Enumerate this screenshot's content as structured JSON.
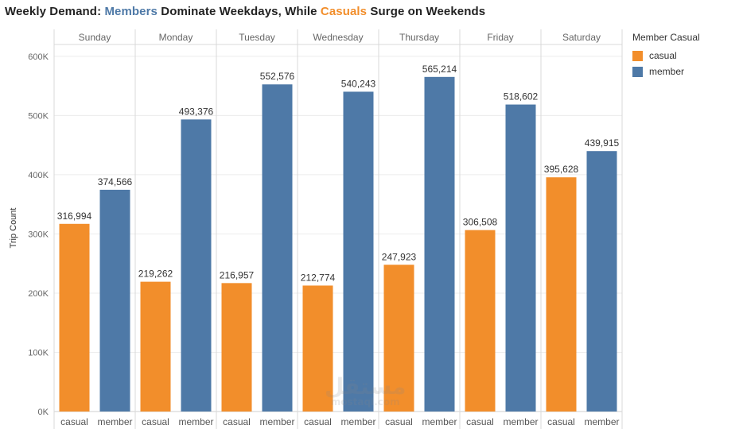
{
  "title": {
    "part1": "Weekly Demand: ",
    "members_word": "Members",
    "part2": " Dominate Weekdays, While ",
    "casuals_word": "Casuals",
    "part3": " Surge on Weekends"
  },
  "legend": {
    "title": "Member Casual",
    "items": [
      {
        "label": "casual",
        "color": "#f28e2b"
      },
      {
        "label": "member",
        "color": "#4e79a7"
      }
    ]
  },
  "watermark": {
    "logo": "مستقل",
    "text": "mostaql.com"
  },
  "chart_data": {
    "type": "bar",
    "categories": [
      "Sunday",
      "Monday",
      "Tuesday",
      "Wednesday",
      "Thursday",
      "Friday",
      "Saturday"
    ],
    "sub_categories": [
      "casual",
      "member"
    ],
    "series": [
      {
        "name": "casual",
        "color": "#f28e2b",
        "values": [
          316994,
          219262,
          216957,
          212774,
          247923,
          306508,
          395628
        ]
      },
      {
        "name": "member",
        "color": "#4e79a7",
        "values": [
          374566,
          493376,
          552576,
          540243,
          565214,
          518602,
          439915
        ]
      }
    ],
    "data_labels": {
      "casual": [
        "316,994",
        "219,262",
        "216,957",
        "212,774",
        "247,923",
        "306,508",
        "395,628"
      ],
      "member": [
        "374,566",
        "493,376",
        "552,576",
        "540,243",
        "565,214",
        "518,602",
        "439,915"
      ]
    },
    "ylabel": "Trip Count",
    "ylim": [
      0,
      620000
    ],
    "yticks": [
      0,
      100000,
      200000,
      300000,
      400000,
      500000,
      600000
    ],
    "ytick_labels": [
      "0K",
      "100K",
      "200K",
      "300K",
      "400K",
      "500K",
      "600K"
    ],
    "grid": true,
    "legend_position": "right"
  }
}
